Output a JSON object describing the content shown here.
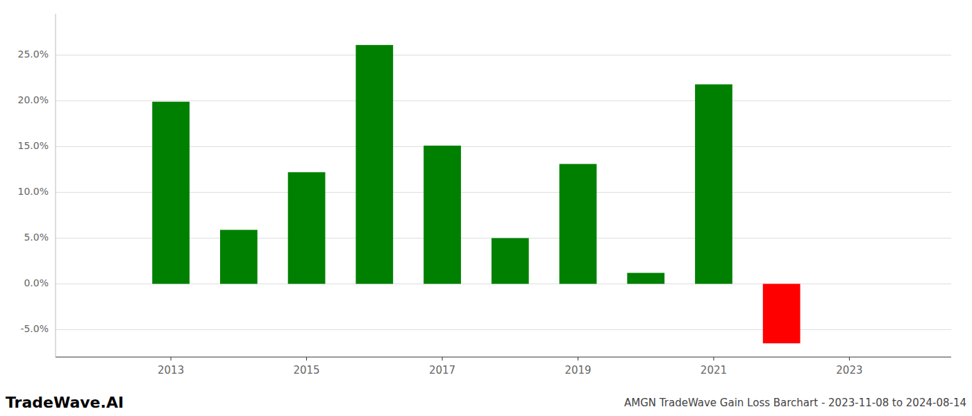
{
  "chart_data": {
    "type": "bar",
    "title": "AMGN TradeWave Gain Loss Barchart - 2023-11-08 to 2024-08-14",
    "annotations": [
      "TradeWave.AI"
    ],
    "x": [
      2013,
      2014,
      2015,
      2016,
      2017,
      2018,
      2019,
      2020,
      2021,
      2022
    ],
    "values": [
      0.199,
      0.059,
      0.122,
      0.261,
      0.151,
      0.05,
      0.131,
      0.012,
      0.218,
      -0.065
    ],
    "colors": [
      "#008000",
      "#008000",
      "#008000",
      "#008000",
      "#008000",
      "#008000",
      "#008000",
      "#008000",
      "#008000",
      "#ff0000"
    ],
    "xlim": [
      2011.3,
      2024.5
    ],
    "xticks": [
      2013,
      2015,
      2017,
      2019,
      2021,
      2023
    ],
    "ylim": [
      -0.08,
      0.295
    ],
    "yticks": [
      {
        "value": -0.05,
        "label": "-5.0%"
      },
      {
        "value": 0.0,
        "label": "0.0%"
      },
      {
        "value": 0.05,
        "label": "5.0%"
      },
      {
        "value": 0.1,
        "label": "10.0%"
      },
      {
        "value": 0.15,
        "label": "15.0%"
      },
      {
        "value": 0.2,
        "label": "20.0%"
      },
      {
        "value": 0.25,
        "label": "25.0%"
      }
    ],
    "grid": true
  }
}
